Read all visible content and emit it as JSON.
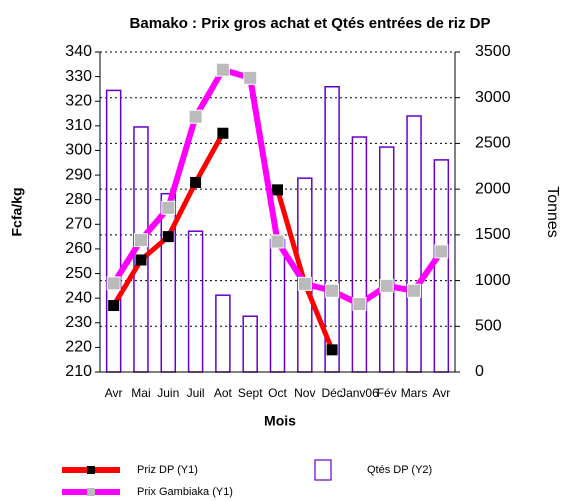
{
  "chart_data": {
    "type": "bar-line",
    "title": "Bamako : Prix  gros achat et Qtés entrées  de riz DP",
    "x_label": "Mois",
    "y_label": "Fcfa/kg",
    "y2_label": "Tonnes",
    "categories": [
      "Avr",
      "Mai",
      "Juin",
      "Juil",
      "Aot",
      "Sept",
      "Oct",
      "Nov",
      "Déc",
      "Janv06",
      "Fév",
      "Mars",
      "Avr"
    ],
    "series": [
      {
        "name": "Priz DP (Y1)",
        "type": "line",
        "color": "#ff0000",
        "marker_color": "#000000",
        "values": [
          237,
          255.5,
          265,
          287,
          307,
          null,
          284,
          246,
          219,
          null,
          null,
          null,
          null
        ]
      },
      {
        "name": "Prix Gambiaka (Y1)",
        "type": "line",
        "color": "#ff00ff",
        "marker_color": "#bbbbbb",
        "values": [
          246,
          263.6,
          276.7,
          313.7,
          332.8,
          329.5,
          263,
          245.8,
          243,
          237.6,
          245,
          243,
          259
        ]
      },
      {
        "name": "Qtés DP (Y2)",
        "type": "bar",
        "axis": "y2",
        "color": "#6600cc",
        "values": [
          3080,
          2680,
          1950,
          1540,
          840,
          610,
          1450,
          2120,
          3120,
          2570,
          2460,
          2800,
          2320
        ]
      }
    ],
    "ylim": [
      210,
      340
    ],
    "yticks": [
      210,
      220,
      230,
      240,
      250,
      260,
      270,
      280,
      290,
      300,
      310,
      320,
      330,
      340
    ],
    "y2lim": [
      0,
      3500
    ],
    "y2ticks": [
      0,
      500,
      1000,
      1500,
      2000,
      2500,
      3000,
      3500
    ],
    "grid": true
  }
}
